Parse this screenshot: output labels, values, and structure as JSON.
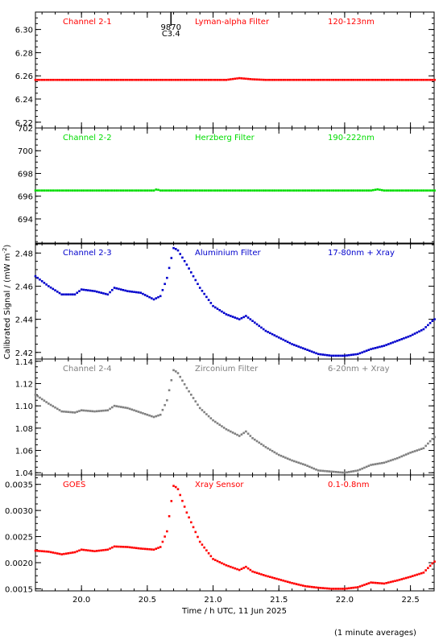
{
  "chart_data": {
    "type": "scatter",
    "xlabel": "Time / h UTC, 11 Jun 2025",
    "ylabel": "Calibrated Signal / (mW m",
    "ylabel_exponent": "-2",
    "ylabel_close": ")",
    "xlim": [
      19.65,
      22.68
    ],
    "x_ticks": [
      "20.0",
      "20.5",
      "21.0",
      "21.5",
      "22.0",
      "22.5"
    ],
    "x_tick_values": [
      20.0,
      20.5,
      21.0,
      21.5,
      22.0,
      22.5
    ],
    "event_marker": {
      "x": 20.68,
      "label_top": "9870",
      "label_bottom": "C3.4"
    },
    "footnote": "(1 minute averages)",
    "panels": [
      {
        "channel": "Channel 2-1",
        "filter": "Lyman-alpha Filter",
        "band": "120-123nm",
        "color": "#ff0000",
        "ylim": [
          6.215,
          6.315
        ],
        "y_ticks": [
          "6.22",
          "6.24",
          "6.26",
          "6.28",
          "6.30"
        ],
        "y_tick_values": [
          6.22,
          6.24,
          6.26,
          6.28,
          6.3
        ],
        "curve": [
          [
            19.65,
            6.2565
          ],
          [
            21.1,
            6.2565
          ],
          [
            21.2,
            6.258
          ],
          [
            21.3,
            6.257
          ],
          [
            21.4,
            6.2565
          ],
          [
            22.68,
            6.2565
          ]
        ]
      },
      {
        "channel": "Channel 2-2",
        "filter": "Herzberg Filter",
        "band": "190-222nm",
        "color": "#00dd00",
        "ylim": [
          691.8,
          702.0
        ],
        "y_ticks": [
          "694",
          "696",
          "698",
          "700",
          "702"
        ],
        "y_tick_values": [
          694,
          696,
          698,
          700,
          702
        ],
        "curve": [
          [
            19.65,
            696.5
          ],
          [
            20.55,
            696.5
          ],
          [
            20.57,
            696.6
          ],
          [
            20.6,
            696.5
          ],
          [
            22.2,
            696.5
          ],
          [
            22.25,
            696.6
          ],
          [
            22.3,
            696.5
          ],
          [
            22.68,
            696.5
          ]
        ]
      },
      {
        "channel": "Channel 2-3",
        "filter": "Aluminium Filter",
        "band": "17-80nm + Xray",
        "color": "#0000cc",
        "ylim": [
          2.416,
          2.486
        ],
        "y_ticks": [
          "2.42",
          "2.44",
          "2.46",
          "2.48"
        ],
        "y_tick_values": [
          2.42,
          2.44,
          2.46,
          2.48
        ],
        "curve": [
          [
            19.65,
            2.466
          ],
          [
            19.75,
            2.46
          ],
          [
            19.85,
            2.455
          ],
          [
            19.95,
            2.455
          ],
          [
            20.0,
            2.458
          ],
          [
            20.1,
            2.457
          ],
          [
            20.2,
            2.455
          ],
          [
            20.25,
            2.459
          ],
          [
            20.35,
            2.457
          ],
          [
            20.45,
            2.456
          ],
          [
            20.55,
            2.452
          ],
          [
            20.6,
            2.454
          ],
          [
            20.65,
            2.465
          ],
          [
            20.7,
            2.483
          ],
          [
            20.73,
            2.482
          ],
          [
            20.8,
            2.473
          ],
          [
            20.9,
            2.459
          ],
          [
            21.0,
            2.448
          ],
          [
            21.1,
            2.443
          ],
          [
            21.2,
            2.44
          ],
          [
            21.25,
            2.442
          ],
          [
            21.3,
            2.439
          ],
          [
            21.4,
            2.433
          ],
          [
            21.5,
            2.429
          ],
          [
            21.6,
            2.425
          ],
          [
            21.7,
            2.422
          ],
          [
            21.8,
            2.419
          ],
          [
            21.9,
            2.418
          ],
          [
            22.0,
            2.418
          ],
          [
            22.1,
            2.419
          ],
          [
            22.2,
            2.422
          ],
          [
            22.3,
            2.424
          ],
          [
            22.4,
            2.427
          ],
          [
            22.5,
            2.43
          ],
          [
            22.6,
            2.434
          ],
          [
            22.68,
            2.44
          ]
        ]
      },
      {
        "channel": "Channel 2-4",
        "filter": "Zirconium Filter",
        "band": "6-20nm + Xray",
        "color": "#808080",
        "ylim": [
          1.038,
          1.142
        ],
        "y_ticks": [
          "1.04",
          "1.06",
          "1.08",
          "1.10",
          "1.12",
          "1.14"
        ],
        "y_tick_values": [
          1.04,
          1.06,
          1.08,
          1.1,
          1.12,
          1.14
        ],
        "curve": [
          [
            19.65,
            1.11
          ],
          [
            19.75,
            1.102
          ],
          [
            19.85,
            1.095
          ],
          [
            19.95,
            1.094
          ],
          [
            20.0,
            1.096
          ],
          [
            20.1,
            1.095
          ],
          [
            20.2,
            1.096
          ],
          [
            20.25,
            1.1
          ],
          [
            20.35,
            1.098
          ],
          [
            20.45,
            1.094
          ],
          [
            20.55,
            1.09
          ],
          [
            20.6,
            1.092
          ],
          [
            20.65,
            1.105
          ],
          [
            20.7,
            1.132
          ],
          [
            20.73,
            1.13
          ],
          [
            20.8,
            1.116
          ],
          [
            20.9,
            1.098
          ],
          [
            21.0,
            1.087
          ],
          [
            21.1,
            1.079
          ],
          [
            21.2,
            1.073
          ],
          [
            21.25,
            1.077
          ],
          [
            21.3,
            1.071
          ],
          [
            21.4,
            1.063
          ],
          [
            21.5,
            1.056
          ],
          [
            21.6,
            1.051
          ],
          [
            21.7,
            1.047
          ],
          [
            21.8,
            1.042
          ],
          [
            21.9,
            1.041
          ],
          [
            22.0,
            1.04
          ],
          [
            22.1,
            1.042
          ],
          [
            22.2,
            1.047
          ],
          [
            22.3,
            1.049
          ],
          [
            22.4,
            1.053
          ],
          [
            22.5,
            1.058
          ],
          [
            22.6,
            1.062
          ],
          [
            22.68,
            1.072
          ]
        ]
      },
      {
        "channel": "GOES",
        "filter": "Xray Sensor",
        "band": "0.1-0.8nm",
        "color": "#ff0000",
        "ylim": [
          0.00146,
          0.00368
        ],
        "y_ticks": [
          "0.0015",
          "0.0020",
          "0.0025",
          "0.0030",
          "0.0035"
        ],
        "y_tick_values": [
          0.0015,
          0.002,
          0.0025,
          0.003,
          0.0035
        ],
        "curve": [
          [
            19.65,
            0.00223
          ],
          [
            19.75,
            0.00221
          ],
          [
            19.85,
            0.00216
          ],
          [
            19.95,
            0.0022
          ],
          [
            20.0,
            0.00225
          ],
          [
            20.1,
            0.00222
          ],
          [
            20.2,
            0.00225
          ],
          [
            20.25,
            0.00231
          ],
          [
            20.35,
            0.0023
          ],
          [
            20.45,
            0.00227
          ],
          [
            20.55,
            0.00225
          ],
          [
            20.6,
            0.0023
          ],
          [
            20.65,
            0.0026
          ],
          [
            20.7,
            0.00347
          ],
          [
            20.73,
            0.00343
          ],
          [
            20.8,
            0.00296
          ],
          [
            20.9,
            0.0024
          ],
          [
            21.0,
            0.00207
          ],
          [
            21.1,
            0.00195
          ],
          [
            21.2,
            0.00186
          ],
          [
            21.25,
            0.00192
          ],
          [
            21.3,
            0.00183
          ],
          [
            21.4,
            0.00175
          ],
          [
            21.5,
            0.00168
          ],
          [
            21.6,
            0.00161
          ],
          [
            21.7,
            0.00155
          ],
          [
            21.8,
            0.00152
          ],
          [
            21.9,
            0.0015
          ],
          [
            22.0,
            0.0015
          ],
          [
            22.1,
            0.00153
          ],
          [
            22.2,
            0.00162
          ],
          [
            22.3,
            0.0016
          ],
          [
            22.4,
            0.00166
          ],
          [
            22.5,
            0.00173
          ],
          [
            22.6,
            0.00181
          ],
          [
            22.68,
            0.00202
          ]
        ]
      }
    ]
  }
}
